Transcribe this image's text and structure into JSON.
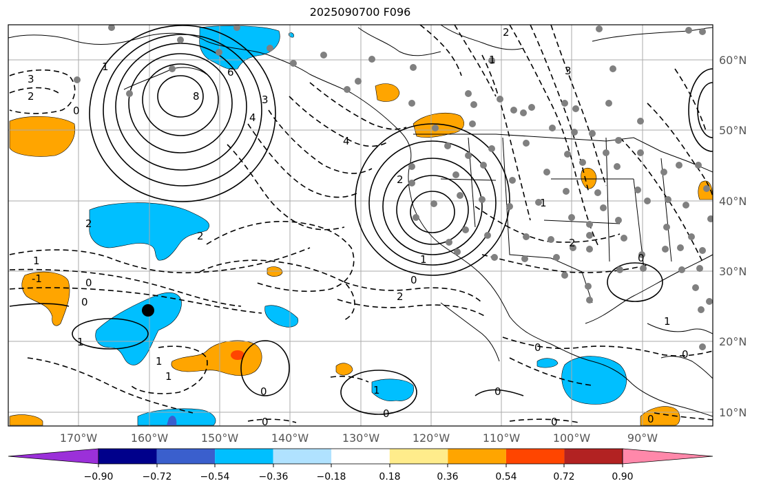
{
  "title": "2025090700 F096",
  "lat_labels": [
    "60°N",
    "50°N",
    "40°N",
    "30°N",
    "20°N",
    "10°N"
  ],
  "lon_labels": [
    "170°W",
    "160°W",
    "150°W",
    "140°W",
    "130°W",
    "120°W",
    "110°W",
    "100°W",
    "90°W"
  ],
  "colorbar": {
    "ticks": [
      "−0.90",
      "−0.72",
      "−0.54",
      "−0.36",
      "−0.18",
      "0.18",
      "0.36",
      "0.54",
      "0.72",
      "0.90"
    ],
    "colors": [
      "#9b30d9",
      "#00008b",
      "#3a5fcd",
      "#00bfff",
      "#b0e2ff",
      "#ffffff",
      "#ffec8b",
      "#ffa500",
      "#ff4500",
      "#b22222",
      "#ff88aa"
    ]
  },
  "colors": {
    "land_outline": "#000000",
    "grid": "#aaaaaa",
    "station": "#808080",
    "positive_anomaly": "#ffa500",
    "negative_anomaly": "#00bfff",
    "strong_positive": "#ff4500"
  },
  "contour_labels": [
    "3",
    "2",
    "0",
    "1",
    "8",
    "6",
    "4",
    "3",
    "2",
    "1",
    "0",
    "-1",
    "1",
    "2",
    "0",
    "1",
    "0",
    "1",
    "2",
    "3",
    "2",
    "1",
    "4",
    "2",
    "0",
    "0",
    "1",
    "0",
    "1",
    "2",
    "0",
    "1",
    "0",
    "0",
    "0",
    "0",
    "1",
    "0"
  ]
}
